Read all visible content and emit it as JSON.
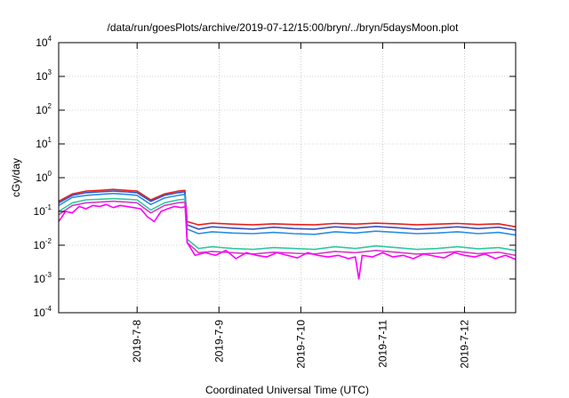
{
  "chart_data": {
    "type": "line",
    "title": "/data/run/goesPlots/archive/2019-07-12/15:00/bryn/../bryn/5daysMoon.plot",
    "xlabel": "Coordinated Universal Time (UTC)",
    "ylabel": "cGy/day",
    "yscale": "log",
    "ylim": [
      0.0001,
      10000
    ],
    "xlim": [
      "2019-07-07T01:00",
      "2019-07-12T15:00"
    ],
    "grid": true,
    "legend": "none",
    "xticks": [
      {
        "x": "2019-07-08T00:00",
        "label": "2019-7-8"
      },
      {
        "x": "2019-07-09T00:00",
        "label": "2019-7-9"
      },
      {
        "x": "2019-07-10T00:00",
        "label": "2019-7-10"
      },
      {
        "x": "2019-07-11T00:00",
        "label": "2019-7-11"
      },
      {
        "x": "2019-07-12T00:00",
        "label": "2019-7-12"
      }
    ],
    "yticks": [
      {
        "value": 0.0001,
        "base": "10",
        "exp": "-4"
      },
      {
        "value": 0.001,
        "base": "10",
        "exp": "-3"
      },
      {
        "value": 0.01,
        "base": "10",
        "exp": "-2"
      },
      {
        "value": 0.1,
        "base": "10",
        "exp": "-1"
      },
      {
        "value": 1,
        "base": "10",
        "exp": "0"
      },
      {
        "value": 10,
        "base": "10",
        "exp": "1"
      },
      {
        "value": 100,
        "base": "10",
        "exp": "2"
      },
      {
        "value": 1000,
        "base": "10",
        "exp": "3"
      },
      {
        "value": 10000,
        "base": "10",
        "exp": "4"
      }
    ],
    "series": [
      {
        "color": "#e8211c",
        "x": [
          "2019-07-07T01:00",
          "2019-07-07T05:00",
          "2019-07-07T09:00",
          "2019-07-07T13:00",
          "2019-07-07T17:00",
          "2019-07-07T21:00",
          "2019-07-08T00:00",
          "2019-07-08T04:00",
          "2019-07-08T08:00",
          "2019-07-08T12:00",
          "2019-07-08T14:00",
          "2019-07-08T14:40",
          "2019-07-08T18:00",
          "2019-07-08T22:00",
          "2019-07-09T04:00",
          "2019-07-09T10:00",
          "2019-07-09T16:00",
          "2019-07-09T22:00",
          "2019-07-10T04:00",
          "2019-07-10T10:00",
          "2019-07-10T16:00",
          "2019-07-10T22:00",
          "2019-07-11T04:00",
          "2019-07-11T10:00",
          "2019-07-11T16:00",
          "2019-07-11T22:00",
          "2019-07-12T04:00",
          "2019-07-12T10:00",
          "2019-07-12T15:00"
        ],
        "y": [
          0.2,
          0.33,
          0.4,
          0.42,
          0.45,
          0.42,
          0.4,
          0.22,
          0.33,
          0.4,
          0.42,
          0.05,
          0.04,
          0.045,
          0.042,
          0.04,
          0.043,
          0.041,
          0.04,
          0.044,
          0.042,
          0.045,
          0.043,
          0.04,
          0.042,
          0.044,
          0.041,
          0.043,
          0.035
        ]
      },
      {
        "color": "#3a4fbf",
        "x": [
          "2019-07-07T01:00",
          "2019-07-07T05:00",
          "2019-07-07T09:00",
          "2019-07-07T13:00",
          "2019-07-07T17:00",
          "2019-07-07T21:00",
          "2019-07-08T00:00",
          "2019-07-08T04:00",
          "2019-07-08T08:00",
          "2019-07-08T12:00",
          "2019-07-08T14:00",
          "2019-07-08T14:40",
          "2019-07-08T18:00",
          "2019-07-08T22:00",
          "2019-07-09T04:00",
          "2019-07-09T10:00",
          "2019-07-09T16:00",
          "2019-07-09T22:00",
          "2019-07-10T04:00",
          "2019-07-10T10:00",
          "2019-07-10T16:00",
          "2019-07-10T22:00",
          "2019-07-11T04:00",
          "2019-07-11T10:00",
          "2019-07-11T16:00",
          "2019-07-11T22:00",
          "2019-07-12T04:00",
          "2019-07-12T10:00",
          "2019-07-12T15:00"
        ],
        "y": [
          0.18,
          0.3,
          0.36,
          0.38,
          0.4,
          0.38,
          0.36,
          0.2,
          0.3,
          0.36,
          0.38,
          0.04,
          0.03,
          0.035,
          0.032,
          0.03,
          0.034,
          0.031,
          0.03,
          0.035,
          0.032,
          0.036,
          0.033,
          0.03,
          0.032,
          0.035,
          0.031,
          0.034,
          0.028
        ]
      },
      {
        "color": "#2a8ee0",
        "x": [
          "2019-07-07T01:00",
          "2019-07-07T05:00",
          "2019-07-07T09:00",
          "2019-07-07T13:00",
          "2019-07-07T17:00",
          "2019-07-07T21:00",
          "2019-07-08T00:00",
          "2019-07-08T04:00",
          "2019-07-08T08:00",
          "2019-07-08T12:00",
          "2019-07-08T14:00",
          "2019-07-08T14:40",
          "2019-07-08T18:00",
          "2019-07-08T22:00",
          "2019-07-09T04:00",
          "2019-07-09T10:00",
          "2019-07-09T16:00",
          "2019-07-09T22:00",
          "2019-07-10T04:00",
          "2019-07-10T10:00",
          "2019-07-10T16:00",
          "2019-07-10T22:00",
          "2019-07-11T04:00",
          "2019-07-11T10:00",
          "2019-07-11T16:00",
          "2019-07-11T22:00",
          "2019-07-12T04:00",
          "2019-07-12T10:00",
          "2019-07-12T15:00"
        ],
        "y": [
          0.15,
          0.26,
          0.3,
          0.32,
          0.34,
          0.32,
          0.3,
          0.16,
          0.25,
          0.3,
          0.32,
          0.03,
          0.022,
          0.025,
          0.023,
          0.022,
          0.024,
          0.022,
          0.021,
          0.025,
          0.023,
          0.026,
          0.024,
          0.022,
          0.023,
          0.025,
          0.022,
          0.024,
          0.02
        ]
      },
      {
        "color": "#2ec9a0",
        "x": [
          "2019-07-07T01:00",
          "2019-07-07T05:00",
          "2019-07-07T09:00",
          "2019-07-07T13:00",
          "2019-07-07T17:00",
          "2019-07-07T21:00",
          "2019-07-08T00:00",
          "2019-07-08T04:00",
          "2019-07-08T08:00",
          "2019-07-08T12:00",
          "2019-07-08T14:00",
          "2019-07-08T14:40",
          "2019-07-08T18:00",
          "2019-07-08T22:00",
          "2019-07-09T04:00",
          "2019-07-09T10:00",
          "2019-07-09T16:00",
          "2019-07-09T22:00",
          "2019-07-10T04:00",
          "2019-07-10T10:00",
          "2019-07-10T16:00",
          "2019-07-10T22:00",
          "2019-07-11T04:00",
          "2019-07-11T10:00",
          "2019-07-11T16:00",
          "2019-07-11T22:00",
          "2019-07-12T04:00",
          "2019-07-12T10:00",
          "2019-07-12T15:00"
        ],
        "y": [
          0.1,
          0.18,
          0.22,
          0.23,
          0.24,
          0.23,
          0.22,
          0.11,
          0.18,
          0.22,
          0.23,
          0.015,
          0.008,
          0.009,
          0.008,
          0.0075,
          0.0085,
          0.008,
          0.0075,
          0.009,
          0.008,
          0.0095,
          0.0085,
          0.0075,
          0.008,
          0.009,
          0.0078,
          0.0085,
          0.007
        ]
      },
      {
        "color": "#d93ac4",
        "x": [
          "2019-07-07T01:00",
          "2019-07-07T05:00",
          "2019-07-07T09:00",
          "2019-07-07T13:00",
          "2019-07-07T17:00",
          "2019-07-07T21:00",
          "2019-07-08T00:00",
          "2019-07-08T04:00",
          "2019-07-08T08:00",
          "2019-07-08T12:00",
          "2019-07-08T14:00",
          "2019-07-08T14:40",
          "2019-07-08T18:00",
          "2019-07-08T22:00",
          "2019-07-09T04:00",
          "2019-07-09T10:00",
          "2019-07-09T16:00",
          "2019-07-09T22:00",
          "2019-07-10T04:00",
          "2019-07-10T10:00",
          "2019-07-10T16:00",
          "2019-07-10T22:00",
          "2019-07-11T04:00",
          "2019-07-11T10:00",
          "2019-07-11T16:00",
          "2019-07-11T22:00",
          "2019-07-12T04:00",
          "2019-07-12T10:00",
          "2019-07-12T15:00"
        ],
        "y": [
          0.08,
          0.15,
          0.18,
          0.19,
          0.2,
          0.19,
          0.18,
          0.09,
          0.15,
          0.18,
          0.19,
          0.012,
          0.006,
          0.0065,
          0.006,
          0.0055,
          0.0062,
          0.0058,
          0.0055,
          0.0065,
          0.006,
          0.007,
          0.0062,
          0.0055,
          0.0058,
          0.0065,
          0.0056,
          0.0062,
          0.005
        ]
      },
      {
        "color": "#ff00ff",
        "x": [
          "2019-07-07T01:00",
          "2019-07-07T03:00",
          "2019-07-07T05:00",
          "2019-07-07T07:00",
          "2019-07-07T09:00",
          "2019-07-07T11:00",
          "2019-07-07T13:00",
          "2019-07-07T15:00",
          "2019-07-07T17:00",
          "2019-07-07T19:00",
          "2019-07-07T21:00",
          "2019-07-07T23:00",
          "2019-07-08T01:00",
          "2019-07-08T03:00",
          "2019-07-08T05:00",
          "2019-07-08T07:00",
          "2019-07-08T09:00",
          "2019-07-08T11:00",
          "2019-07-08T13:00",
          "2019-07-08T14:20",
          "2019-07-08T14:40",
          "2019-07-08T17:00",
          "2019-07-08T20:00",
          "2019-07-08T23:00",
          "2019-07-09T02:00",
          "2019-07-09T05:00",
          "2019-07-09T08:00",
          "2019-07-09T11:00",
          "2019-07-09T14:00",
          "2019-07-09T17:00",
          "2019-07-09T20:00",
          "2019-07-09T23:00",
          "2019-07-10T02:00",
          "2019-07-10T05:00",
          "2019-07-10T08:00",
          "2019-07-10T11:00",
          "2019-07-10T14:00",
          "2019-07-10T16:00",
          "2019-07-10T17:00",
          "2019-07-10T18:00",
          "2019-07-10T21:00",
          "2019-07-11T00:00",
          "2019-07-11T03:00",
          "2019-07-11T06:00",
          "2019-07-11T09:00",
          "2019-07-11T12:00",
          "2019-07-11T15:00",
          "2019-07-11T18:00",
          "2019-07-11T21:00",
          "2019-07-12T00:00",
          "2019-07-12T03:00",
          "2019-07-12T06:00",
          "2019-07-12T09:00",
          "2019-07-12T12:00",
          "2019-07-12T15:00"
        ],
        "y": [
          0.05,
          0.1,
          0.09,
          0.14,
          0.12,
          0.15,
          0.14,
          0.16,
          0.13,
          0.15,
          0.14,
          0.13,
          0.12,
          0.07,
          0.05,
          0.1,
          0.12,
          0.14,
          0.13,
          0.14,
          0.012,
          0.005,
          0.006,
          0.005,
          0.007,
          0.004,
          0.006,
          0.005,
          0.0045,
          0.006,
          0.005,
          0.0042,
          0.006,
          0.005,
          0.0045,
          0.005,
          0.004,
          0.0045,
          0.001,
          0.005,
          0.0045,
          0.006,
          0.0045,
          0.005,
          0.004,
          0.0055,
          0.0048,
          0.0042,
          0.006,
          0.005,
          0.0045,
          0.0055,
          0.004,
          0.005,
          0.0038
        ]
      }
    ]
  }
}
